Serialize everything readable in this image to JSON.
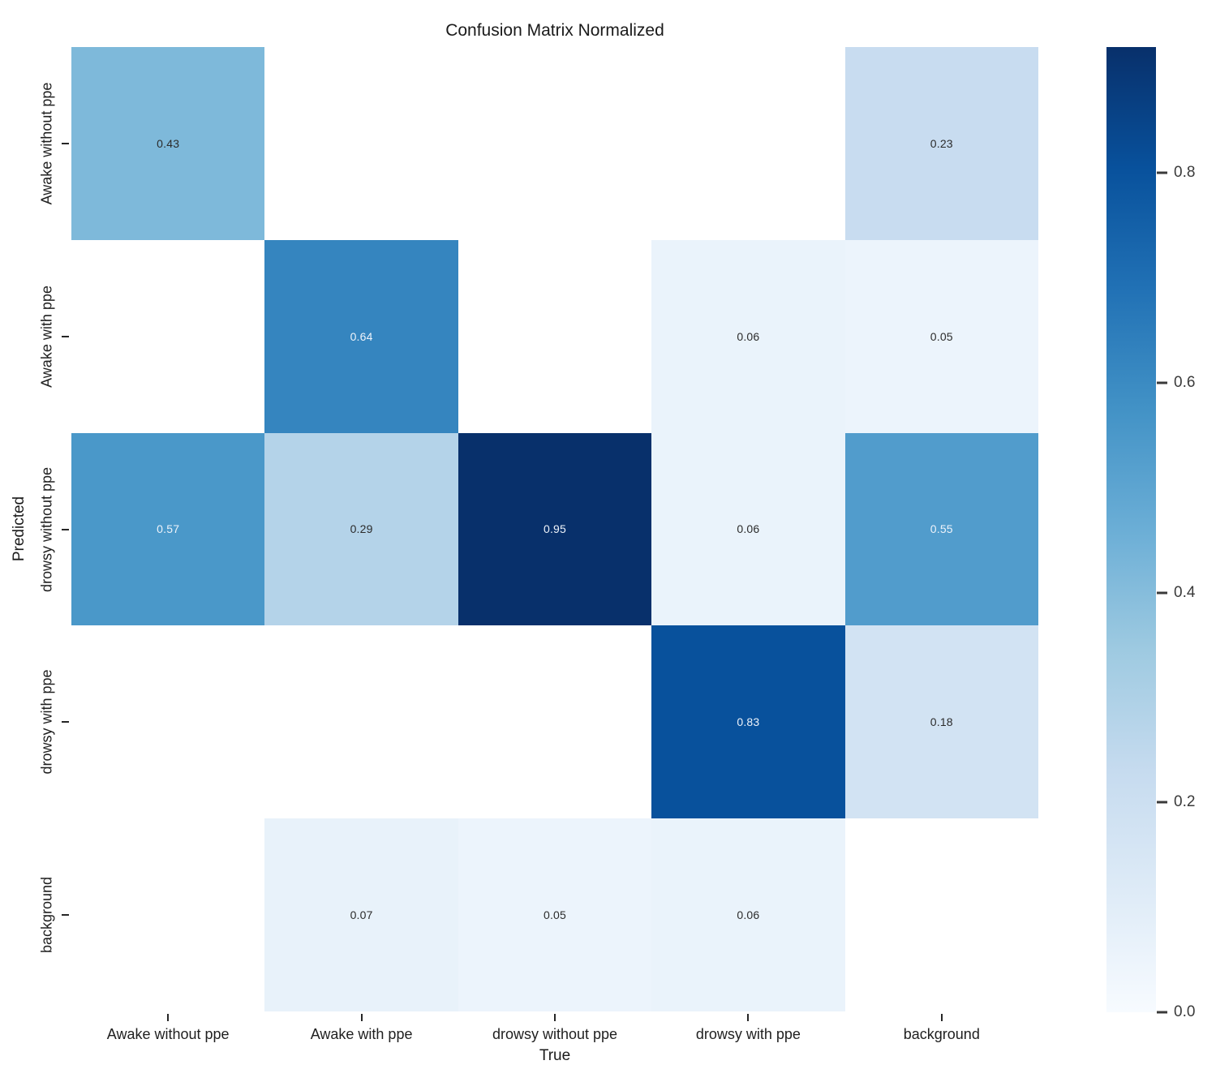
{
  "chart_data": {
    "type": "heatmap",
    "title": "Confusion Matrix Normalized",
    "xlabel": "True",
    "ylabel": "Predicted",
    "x_categories": [
      "Awake without ppe",
      "Awake with ppe",
      "drowsy without ppe",
      "drowsy with ppe",
      "background"
    ],
    "y_categories": [
      "Awake without ppe",
      "Awake with ppe",
      "drowsy without ppe",
      "drowsy with ppe",
      "background"
    ],
    "matrix": [
      [
        0.43,
        null,
        null,
        null,
        0.23
      ],
      [
        null,
        0.64,
        null,
        0.06,
        0.05
      ],
      [
        0.57,
        0.29,
        0.95,
        0.06,
        0.55
      ],
      [
        null,
        null,
        null,
        0.83,
        0.18
      ],
      [
        null,
        0.07,
        0.05,
        0.06,
        null
      ]
    ],
    "colormap": "Blues",
    "vmin": 0.0,
    "vmax": 0.95,
    "colorbar_ticks": [
      0.0,
      0.2,
      0.4,
      0.6,
      0.8
    ],
    "colors": {
      "colormap_low": "#f7fbff",
      "colormap_high": "#08306b",
      "annotation_dark": "#2b2b2b",
      "annotation_light": "#eef3fa",
      "empty_cell": "#ffffff"
    }
  }
}
